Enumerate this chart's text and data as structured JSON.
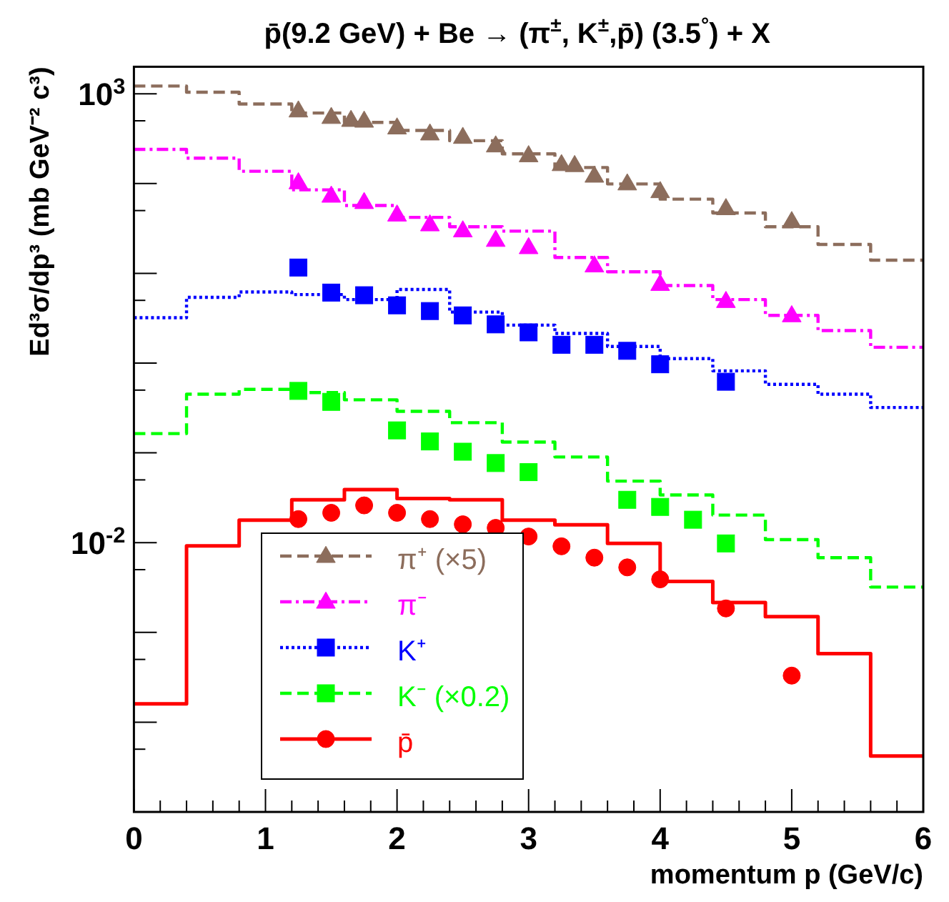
{
  "chart_data": {
    "type": "step",
    "title": "p̄(9.2 GeV) + Be  → (π$^{±}$, K$^{±}$,p̄) (3.5$^{°}$) + X",
    "xlabel": "momentum p (GeV/c)",
    "ylabel": "Ed³σ/dp³ (mb GeV⁻² c³)",
    "log": "y",
    "grid": false,
    "legend": "bottom left",
    "xlim": [
      0,
      6
    ],
    "ylim": [
      1e-05,
      2000
    ],
    "xticks": [
      0,
      {
        "value": 0.2,
        "label": null
      },
      {
        "value": 0.4,
        "label": null
      },
      {
        "value": 0.6,
        "label": null
      },
      {
        "value": 0.8,
        "label": null
      },
      1,
      {
        "value": 1.2,
        "label": null
      },
      {
        "value": 1.4,
        "label": null
      },
      {
        "value": 1.6,
        "label": null
      },
      {
        "value": 1.8,
        "label": null
      },
      2,
      {
        "value": 2.2,
        "label": null
      },
      {
        "value": 2.4,
        "label": null
      },
      {
        "value": 2.6,
        "label": null
      },
      {
        "value": 2.8,
        "label": null
      },
      3,
      {
        "value": 3.2,
        "label": null
      },
      {
        "value": 3.4,
        "label": null
      },
      {
        "value": 3.6,
        "label": null
      },
      {
        "value": 3.8,
        "label": null
      },
      4,
      {
        "value": 4.2,
        "label": null
      },
      {
        "value": 4.4,
        "label": null
      },
      {
        "value": 4.6,
        "label": null
      },
      {
        "value": 4.8,
        "label": null
      },
      5,
      {
        "value": 5.2,
        "label": null
      },
      {
        "value": 5.4,
        "label": null
      },
      {
        "value": 5.6,
        "label": null
      },
      {
        "value": 5.8,
        "label": null
      },
      6
    ],
    "yticks": [
      {
        "value": 1e-05,
        "label": null
      },
      {
        "value": 5e-05,
        "label": null
      },
      {
        "value": 0.0001,
        "label": null
      },
      {
        "value": 0.0005,
        "label": null
      },
      {
        "value": 0.001,
        "label": null
      },
      {
        "value": 0.005,
        "label": null
      },
      {
        "value": 0.01,
        "label": "10$^{-2}$"
      },
      {
        "value": 0.05,
        "label": null
      },
      {
        "value": 0.1,
        "label": null
      },
      {
        "value": 0.5,
        "label": null
      },
      {
        "value": 1,
        "label": null
      },
      {
        "value": 5,
        "label": null
      },
      {
        "value": 10,
        "label": null
      },
      {
        "value": 50,
        "label": null
      },
      {
        "value": 100,
        "label": null
      },
      {
        "value": 500,
        "label": null
      },
      {
        "value": 1000,
        "label": "10$^{3}$"
      }
    ],
    "x": [
      0,
      0.4,
      0.8,
      1.2,
      1.6,
      2.0,
      2.4,
      2.8,
      3.2,
      3.6,
      4.0,
      4.4,
      4.8,
      5.2,
      5.6,
      6.0
    ],
    "series": [
      {
        "name": "π⁺ (×5)",
        "color": "#8c6d5c",
        "line_style": "dashed",
        "values": [
          1220,
          1040,
          770,
          610,
          480,
          390,
          300,
          214,
          151,
          99,
          67,
          47,
          33,
          21,
          14,
          14
        ]
      },
      {
        "type": "scatter",
        "color": "#8c6d5c",
        "marker": "triangle",
        "x": [
          1.25,
          1.5,
          1.65,
          1.75,
          2.0,
          2.25,
          2.5,
          2.75,
          3.0,
          3.25,
          3.35,
          3.5,
          3.75,
          4.0,
          4.5,
          5.0
        ],
        "values": [
          650,
          550,
          510,
          500,
          420,
          360,
          330,
          265,
          206,
          164,
          160,
          122,
          100,
          82,
          53,
          38
        ]
      },
      {
        "name": "π⁻",
        "color": "#ff00ff",
        "line_style": "dashdot",
        "values": [
          240,
          192,
          137,
          85,
          57,
          42,
          33,
          29.5,
          15,
          10.4,
          7.3,
          5.1,
          3.4,
          2.3,
          1.5,
          1.5
        ]
      },
      {
        "type": "scatter",
        "color": "#ff00ff",
        "marker": "triangle",
        "x": [
          1.25,
          1.5,
          1.75,
          2.0,
          2.25,
          2.5,
          2.75,
          3.0,
          3.5,
          4.0,
          4.5,
          5.0
        ],
        "values": [
          103,
          73,
          62,
          45,
          35,
          30,
          23.5,
          19.5,
          12.2,
          7.6,
          4.9,
          3.4
        ]
      },
      {
        "name": "K⁺",
        "color": "#0000ff",
        "line_style": "dotted",
        "values": [
          3.2,
          5.4,
          6.2,
          5.8,
          5.1,
          6.6,
          3.7,
          2.65,
          2.14,
          1.53,
          1.12,
          0.82,
          0.58,
          0.45,
          0.32,
          0.32
        ]
      },
      {
        "type": "scatter",
        "color": "#0000ff",
        "marker": "square",
        "x": [
          1.25,
          1.5,
          1.75,
          2.0,
          2.25,
          2.5,
          2.75,
          3.0,
          3.25,
          3.5,
          3.75,
          4.0,
          4.5
        ],
        "values": [
          11.6,
          6.1,
          5.7,
          4.4,
          3.8,
          3.4,
          2.7,
          2.2,
          1.6,
          1.6,
          1.37,
          0.97,
          0.62
        ]
      },
      {
        "name": "K⁻ (×0.2)",
        "color": "#00ff00",
        "line_style": "dashed",
        "values": [
          0.164,
          0.45,
          0.51,
          0.47,
          0.39,
          0.29,
          0.217,
          0.132,
          0.09,
          0.0485,
          0.034,
          0.0203,
          0.0108,
          0.0068,
          0.0032,
          0.0032
        ]
      },
      {
        "type": "scatter",
        "color": "#00ff00",
        "marker": "square",
        "x": [
          1.25,
          1.5,
          2.0,
          2.25,
          2.5,
          2.75,
          3.0,
          3.75,
          4.0,
          4.25,
          4.5
        ],
        "values": [
          0.49,
          0.37,
          0.178,
          0.134,
          0.103,
          0.077,
          0.061,
          0.03,
          0.025,
          0.018,
          0.0098
        ]
      },
      {
        "name": "p̄",
        "color": "#ff0000",
        "line_style": "solid",
        "values": [
          0.00016,
          0.0092,
          0.0178,
          0.03,
          0.039,
          0.031,
          0.03,
          0.0178,
          0.0158,
          0.0098,
          0.0037,
          0.00215,
          0.0015,
          0.00058,
          4.2e-05,
          4.2e-05
        ]
      },
      {
        "type": "scatter",
        "color": "#ff0000",
        "marker": "circle",
        "x": [
          1.25,
          1.5,
          1.75,
          2.0,
          2.25,
          2.5,
          2.75,
          3.0,
          3.25,
          3.5,
          3.75,
          4.0,
          4.5,
          5.0
        ],
        "values": [
          0.0183,
          0.0215,
          0.026,
          0.0215,
          0.0183,
          0.016,
          0.0146,
          0.0117,
          0.0091,
          0.0068,
          0.0053,
          0.0039,
          0.00185,
          0.00033
        ]
      }
    ]
  }
}
